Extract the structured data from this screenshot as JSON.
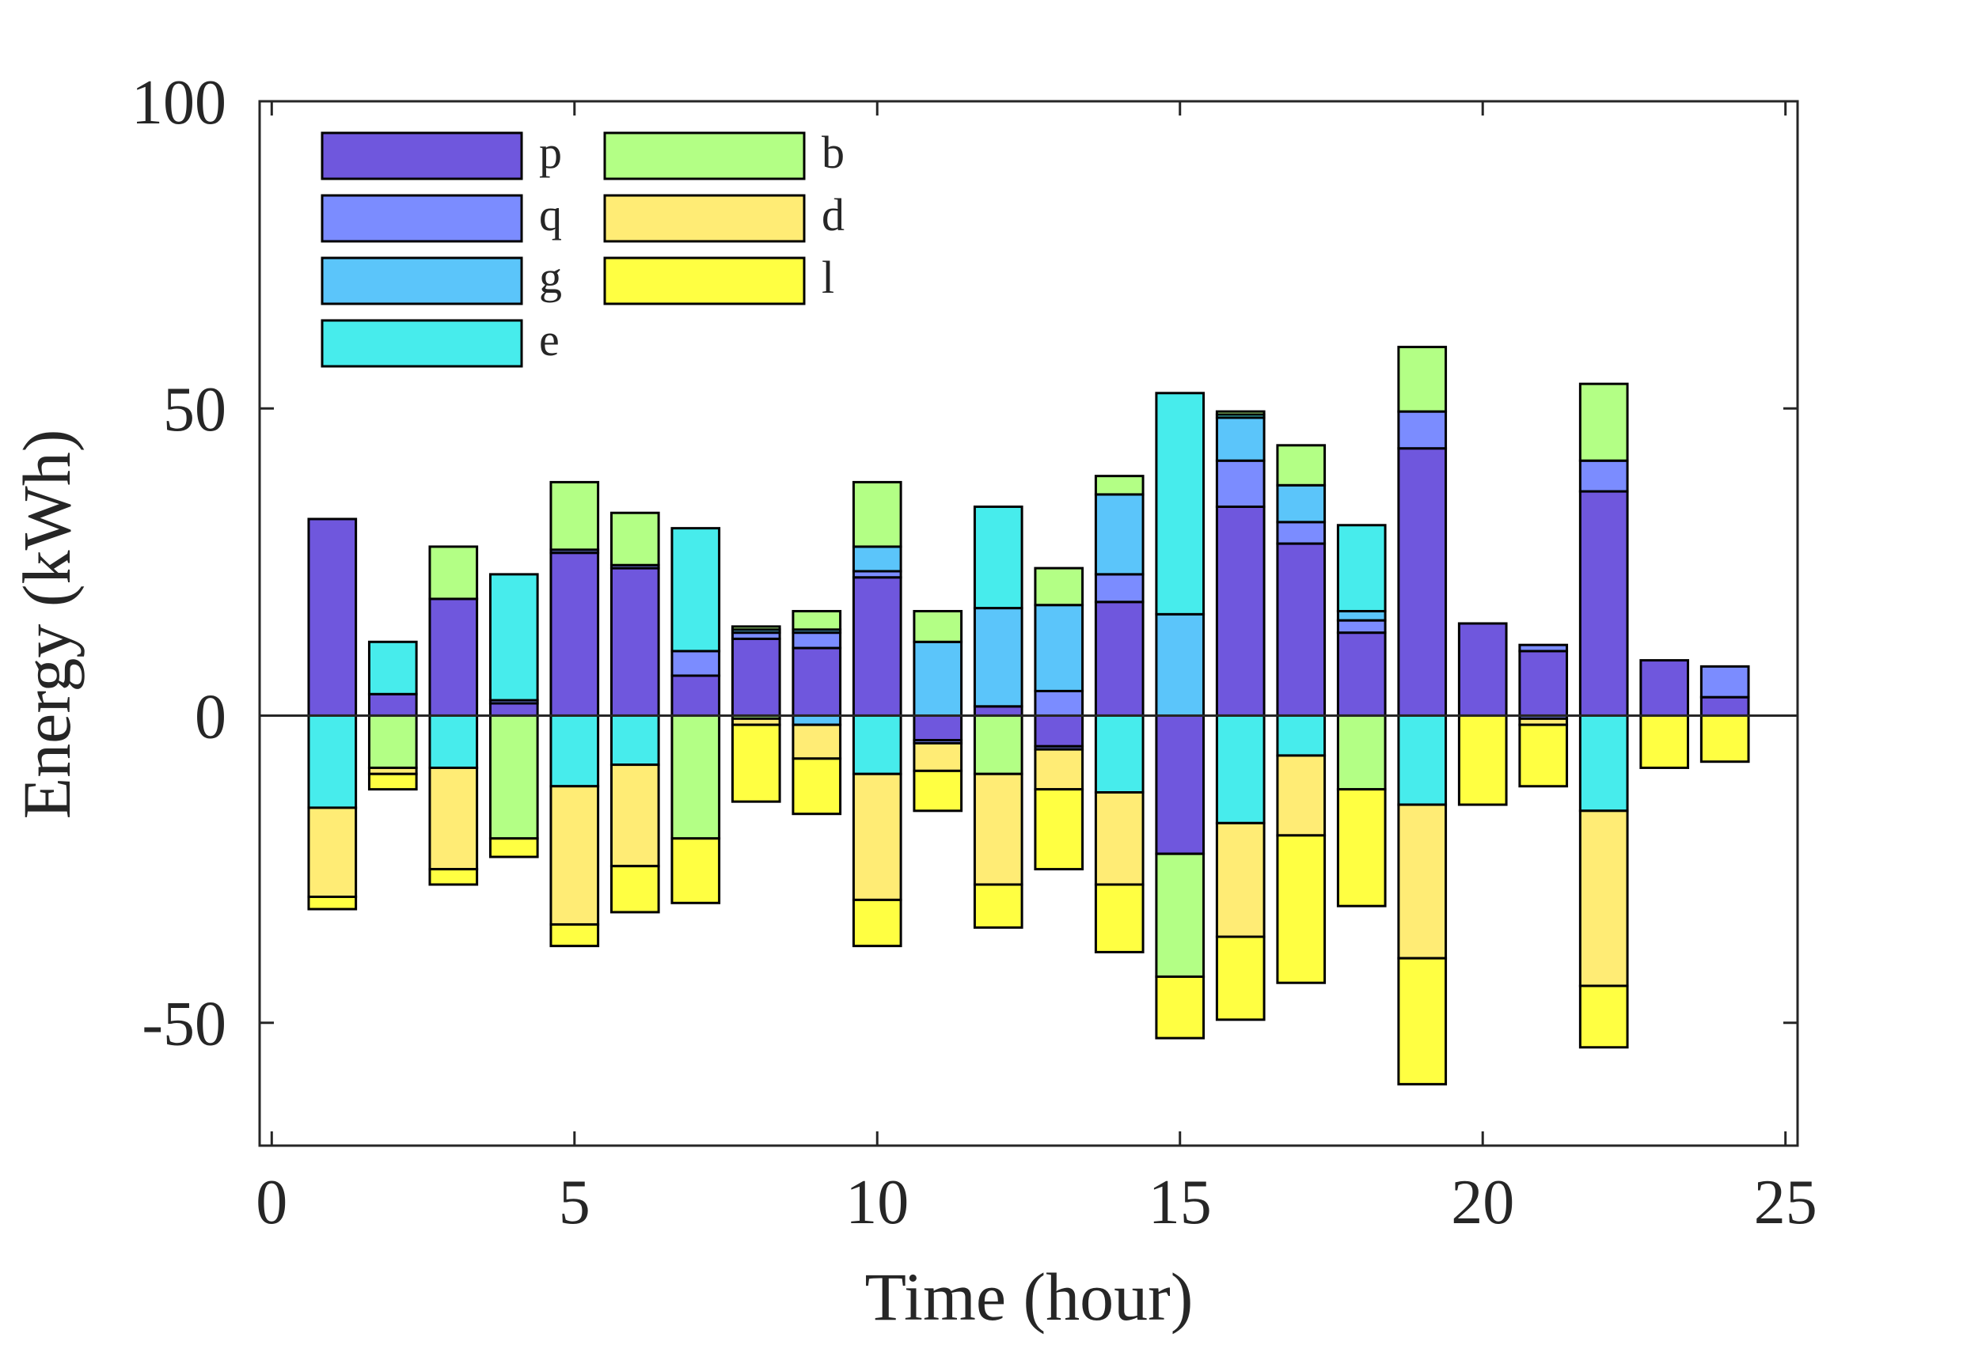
{
  "chart_data": {
    "type": "bar",
    "stacked": true,
    "diverging": true,
    "title": "",
    "xlabel": "Time (hour)",
    "ylabel": "Energy (kWh)",
    "xlim": [
      -0.2,
      25.2
    ],
    "ylim": [
      -70,
      100
    ],
    "xticks": [
      0,
      5,
      10,
      15,
      20,
      25
    ],
    "yticks": [
      -50,
      0,
      50,
      100
    ],
    "xtick_labels": [
      "0",
      "5",
      "10",
      "15",
      "20",
      "25"
    ],
    "ytick_labels": [
      "-50",
      "0",
      "50",
      "100"
    ],
    "legend": {
      "position": "top-left",
      "columns": 2
    },
    "x": [
      1,
      2,
      3,
      4,
      5,
      6,
      7,
      8,
      9,
      10,
      11,
      12,
      13,
      14,
      15,
      16,
      17,
      18,
      19,
      20,
      21,
      22,
      23,
      24
    ],
    "series": [
      {
        "name": "p",
        "color": "#6f57dd",
        "positive": [
          32,
          3.5,
          19,
          2,
          26.5,
          24,
          6.5,
          12.5,
          11,
          22.5,
          0,
          1.5,
          0,
          18.5,
          0,
          34,
          28,
          13.5,
          43.5,
          15,
          10.5,
          36.5,
          9,
          3
        ],
        "negative": [
          0,
          0,
          0,
          0,
          0,
          0,
          0,
          0,
          0,
          0,
          -4,
          0,
          -5,
          0,
          -22.5,
          0,
          0,
          0,
          0,
          0,
          0,
          0,
          0,
          0
        ]
      },
      {
        "name": "q",
        "color": "#7b8cff",
        "positive": [
          0,
          0,
          0,
          0.5,
          0.5,
          0.5,
          4,
          1,
          2.5,
          1,
          0,
          0,
          4,
          4.5,
          0,
          7.5,
          3.5,
          2,
          6,
          0,
          1,
          5,
          0,
          5
        ],
        "negative": [
          0,
          0,
          0,
          0,
          0,
          0,
          0,
          0,
          0,
          0,
          -0.5,
          0,
          -0.5,
          0,
          0,
          0,
          0,
          0,
          0,
          0,
          -0.5,
          0,
          0,
          0
        ]
      },
      {
        "name": "g",
        "color": "#5bc5fa",
        "positive": [
          0,
          0,
          0,
          0,
          0,
          0,
          0,
          0.5,
          0.5,
          4,
          12,
          16,
          14,
          13,
          16.5,
          7,
          6,
          1.5,
          0,
          0,
          0,
          0,
          0,
          0
        ],
        "negative": [
          0,
          0,
          0,
          0,
          0,
          0,
          0,
          0,
          -1.5,
          0,
          0,
          0,
          0,
          0,
          0,
          0,
          0,
          0,
          0,
          0,
          0,
          0,
          0,
          0
        ]
      },
      {
        "name": "e",
        "color": "#47ecec",
        "positive": [
          0,
          8.5,
          0,
          20.5,
          0,
          0,
          20,
          0,
          0,
          0,
          0,
          16.5,
          0,
          0,
          36,
          0.5,
          0,
          14,
          0,
          0,
          0,
          0,
          0,
          0
        ],
        "negative": [
          -15,
          0,
          -8.5,
          0,
          -11.5,
          -8,
          0,
          0,
          0,
          -9.5,
          0,
          0,
          0,
          -12.5,
          0,
          -17.5,
          -6.5,
          0,
          -14.5,
          0,
          0,
          -15.5,
          0,
          0
        ]
      },
      {
        "name": "b",
        "color": "#b3ff85",
        "positive": [
          0,
          0,
          8.5,
          0,
          11,
          8.5,
          0,
          0.5,
          3,
          10.5,
          5,
          0,
          6,
          3,
          0,
          0.5,
          6.5,
          0,
          10.5,
          0,
          0,
          12.5,
          0,
          0
        ],
        "negative": [
          0,
          -8.5,
          0,
          -20,
          0,
          0,
          -20,
          -0.5,
          0,
          0,
          0,
          -9.5,
          0,
          0,
          -20,
          0,
          0,
          -12,
          0,
          0,
          0,
          0,
          0,
          0
        ]
      },
      {
        "name": "d",
        "color": "#ffec75",
        "positive": [
          0,
          0,
          0,
          0,
          0,
          0,
          0,
          0,
          0,
          0,
          0,
          0,
          0,
          0,
          0,
          0,
          0,
          0,
          0,
          0,
          0,
          0,
          0,
          0
        ],
        "negative": [
          -14.5,
          -1,
          -16.5,
          0,
          -22.5,
          -16.5,
          0,
          -1,
          -5.5,
          -20.5,
          -4.5,
          -18,
          -6.5,
          -15,
          0,
          -18.5,
          -13,
          0,
          -25,
          0,
          -1,
          -28.5,
          0,
          0
        ]
      },
      {
        "name": "l",
        "color": "#ffff42",
        "positive": [
          0,
          0,
          0,
          0,
          0,
          0,
          0,
          0,
          0,
          0,
          0,
          0,
          0,
          0,
          0,
          0,
          0,
          0,
          0,
          0,
          0,
          0,
          0,
          0
        ],
        "negative": [
          -2,
          -2.5,
          -2.5,
          -3,
          -3.5,
          -7.5,
          -10.5,
          -12.5,
          -9,
          -7.5,
          -6.5,
          -7,
          -13,
          -11,
          -10,
          -13.5,
          -24,
          -19,
          -20.5,
          -14.5,
          -10,
          -10,
          -8.5,
          -7.5
        ]
      }
    ]
  }
}
